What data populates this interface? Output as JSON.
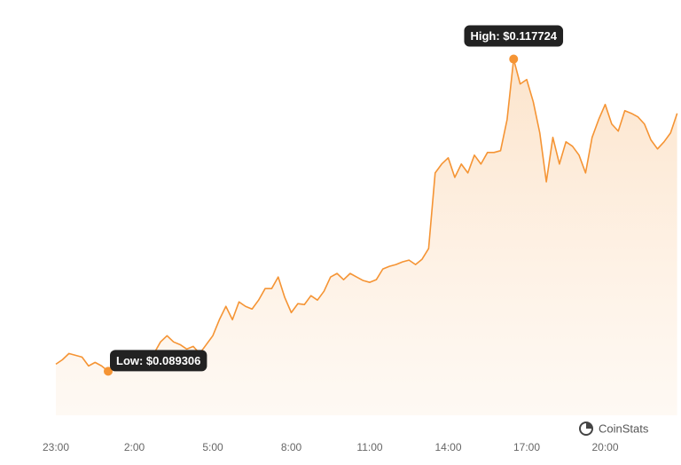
{
  "chart_data": {
    "type": "line",
    "categories": [
      "23:00",
      null,
      null,
      null,
      null,
      null,
      null,
      null,
      null,
      null,
      null,
      null,
      "2:00",
      null,
      null,
      null,
      null,
      null,
      null,
      null,
      null,
      null,
      null,
      null,
      "5:00",
      null,
      null,
      null,
      null,
      null,
      null,
      null,
      null,
      null,
      null,
      null,
      "8:00",
      null,
      null,
      null,
      null,
      null,
      null,
      null,
      null,
      null,
      null,
      null,
      "11:00",
      null,
      null,
      null,
      null,
      null,
      null,
      null,
      null,
      null,
      null,
      null,
      "14:00",
      null,
      null,
      null,
      null,
      null,
      null,
      null,
      null,
      null,
      null,
      null,
      "17:00",
      null,
      null,
      null,
      null,
      null,
      null,
      null,
      null,
      null,
      null,
      null,
      "20:00",
      null,
      null,
      null,
      null,
      null,
      null,
      null,
      null,
      null,
      null,
      null
    ],
    "values": [
      0.089954,
      0.090358,
      0.090925,
      0.090763,
      0.090601,
      0.089792,
      0.090116,
      0.089792,
      0.089306,
      0.089792,
      0.089711,
      0.08963,
      0.089792,
      0.089954,
      0.090116,
      0.090925,
      0.091978,
      0.092544,
      0.091978,
      0.091735,
      0.09133,
      0.091573,
      0.090925,
      0.091735,
      0.092544,
      0.094002,
      0.095216,
      0.094002,
      0.095621,
      0.095216,
      0.094973,
      0.095783,
      0.096835,
      0.096835,
      0.097888,
      0.096026,
      0.094649,
      0.095459,
      0.095378,
      0.096188,
      0.095783,
      0.096592,
      0.097888,
      0.098212,
      0.097645,
      0.098212,
      0.097888,
      0.097564,
      0.097402,
      0.097645,
      0.098616,
      0.098859,
      0.099021,
      0.099264,
      0.099426,
      0.099021,
      0.099507,
      0.100478,
      0.10736,
      0.10817,
      0.108736,
      0.106955,
      0.10817,
      0.10736,
      0.108979,
      0.10817,
      0.109222,
      0.109222,
      0.109384,
      0.112218,
      0.117724,
      0.115456,
      0.115861,
      0.113837,
      0.111003,
      0.10655,
      0.110598,
      0.10817,
      0.110194,
      0.109789,
      0.108979,
      0.10736,
      0.110598,
      0.112218,
      0.113594,
      0.111813,
      0.111166,
      0.113028,
      0.112784,
      0.112461,
      0.111813,
      0.110356,
      0.109546,
      0.110194,
      0.111003,
      0.112784
    ],
    "color": "#f59434",
    "ylim": [
      0.0853,
      0.1231
    ],
    "annotations": {
      "high": "High: $0.117724",
      "low": "Low: $0.089306"
    },
    "watermark": "CoinStats"
  }
}
